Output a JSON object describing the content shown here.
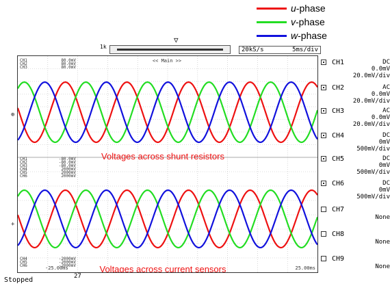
{
  "legend": {
    "items": [
      {
        "prefix": "u",
        "suffix": "-phase",
        "color": "#ee1111"
      },
      {
        "prefix": "v",
        "suffix": "-phase",
        "color": "#22dd22"
      },
      {
        "prefix": "w",
        "suffix": "-phase",
        "color": "#1111dd"
      }
    ]
  },
  "toolbar": {
    "k_label": "1k",
    "trigger_marker": "▽",
    "sample_rate": "20kS/s",
    "timebase": "5ms/div"
  },
  "scope": {
    "main_label": "<< Main >>",
    "upper_info": {
      "ch_names": [
        "CH1",
        "CH2",
        "CH3"
      ],
      "values": [
        "80.0mV",
        "80.0mV",
        "80.0mV"
      ]
    },
    "mid_info": {
      "ch_names": [
        "CH1",
        "CH2",
        "CH3",
        "CH4",
        "CH5",
        "CH6"
      ],
      "values": [
        "-80.0mV",
        "-80.0mV",
        "-80.0mV",
        "2000mV",
        "2000mV",
        "2000mV"
      ]
    },
    "lower_info": {
      "ch_names": [
        "CH4",
        "CH5",
        "CH6"
      ],
      "values": [
        "-2000mV",
        "-2000mV",
        "-2000mV"
      ]
    },
    "top_annotation": "Voltages across shunt resistors",
    "bottom_annotation": "Voltages across current sensors",
    "annotation_color": "#ee1111",
    "time_start": "-25.00ms",
    "time_end": "25.00ms"
  },
  "channels": [
    {
      "name": "CH1",
      "coupling": "DC",
      "offset": "0.0mV",
      "scale": "20.0mV/div",
      "active": true
    },
    {
      "name": "CH2",
      "coupling": "AC",
      "offset": "0.0mV",
      "scale": "20.0mV/div",
      "active": true
    },
    {
      "name": "CH3",
      "coupling": "AC",
      "offset": "0.0mV",
      "scale": "20.0mV/div",
      "active": true
    },
    {
      "name": "CH4",
      "coupling": "DC",
      "offset": "0mV",
      "scale": "500mV/div",
      "active": true
    },
    {
      "name": "CH5",
      "coupling": "DC",
      "offset": "0mV",
      "scale": "500mV/div",
      "active": true
    },
    {
      "name": "CH6",
      "coupling": "DC",
      "offset": "0mV",
      "scale": "500mV/div",
      "active": true
    },
    {
      "name": "CH7",
      "coupling": "",
      "offset": "None",
      "scale": "",
      "active": false
    },
    {
      "name": "CH8",
      "coupling": "",
      "offset": "None",
      "scale": "",
      "active": false
    },
    {
      "name": "CH9",
      "coupling": "",
      "offset": "None",
      "scale": "",
      "active": false
    }
  ],
  "status": {
    "state": "Stopped",
    "count": "27"
  }
}
